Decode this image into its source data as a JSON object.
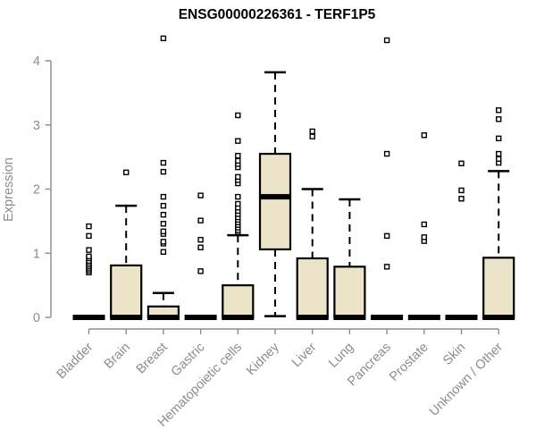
{
  "page": {
    "background": "#FFFFFF"
  },
  "chart_data": {
    "type": "boxplot",
    "title": "ENSG00000226361 - TERF1P5",
    "ylabel": "Expression",
    "xlabel": "",
    "ylim": [
      0,
      4.4
    ],
    "yticks": [
      0,
      1,
      2,
      3,
      4
    ],
    "grid": false,
    "legend": "none",
    "colors": {
      "box_fill": "#ECE4C8",
      "box_stroke": "#000000",
      "median": "#000000",
      "whisker": "#000000",
      "outlier_stroke": "#000000",
      "outlier_fill": "#FFFFFF",
      "axis": "#8C8C8C",
      "title": "#000000"
    },
    "categories": [
      "Bladder",
      "Brain",
      "Breast",
      "Gastric",
      "Hematopoietic cells",
      "Kidney",
      "Liver",
      "Lung",
      "Pancreas",
      "Prostate",
      "Skin",
      "Unknown / Other"
    ],
    "series": [
      {
        "name": "Bladder",
        "low": 0,
        "q1": 0,
        "median": 0,
        "q3": 0,
        "high": 0,
        "outliers": [
          0.7,
          0.73,
          0.76,
          0.79,
          0.82,
          0.85,
          0.88,
          0.92,
          0.95,
          1.05,
          1.27,
          1.42
        ]
      },
      {
        "name": "Brain",
        "low": 0,
        "q1": 0,
        "median": 0,
        "q3": 0.81,
        "high": 1.74,
        "outliers": [
          2.26
        ]
      },
      {
        "name": "Breast",
        "low": 0,
        "q1": 0,
        "median": 0,
        "q3": 0.17,
        "high": 0.38,
        "outliers": [
          1.02,
          1.15,
          1.18,
          1.3,
          1.34,
          1.46,
          1.6,
          1.74,
          1.88,
          2.27,
          2.41,
          4.35
        ]
      },
      {
        "name": "Gastric",
        "low": 0,
        "q1": 0,
        "median": 0,
        "q3": 0,
        "high": 0,
        "outliers": [
          0.72,
          1.09,
          1.21,
          1.51,
          1.9
        ]
      },
      {
        "name": "Hematopoietic cells",
        "low": 0,
        "q1": 0,
        "median": 0,
        "q3": 0.5,
        "high": 1.28,
        "outliers": [
          1.33,
          1.36,
          1.4,
          1.44,
          1.48,
          1.52,
          1.56,
          1.61,
          1.66,
          1.71,
          1.77,
          1.88,
          2.09,
          2.14,
          2.19,
          2.34,
          2.39,
          2.44,
          2.52,
          2.75,
          3.15
        ]
      },
      {
        "name": "Kidney",
        "low": 0.02,
        "q1": 1.06,
        "median": 1.88,
        "q3": 2.55,
        "high": 3.82,
        "outliers": []
      },
      {
        "name": "Liver",
        "low": 0,
        "q1": 0,
        "median": 0,
        "q3": 0.92,
        "high": 2.0,
        "outliers": [
          2.82,
          2.9
        ]
      },
      {
        "name": "Lung",
        "low": 0,
        "q1": 0,
        "median": 0,
        "q3": 0.79,
        "high": 1.84,
        "outliers": []
      },
      {
        "name": "Pancreas",
        "low": 0,
        "q1": 0,
        "median": 0,
        "q3": 0,
        "high": 0,
        "outliers": [
          0.79,
          1.27,
          2.55,
          4.32
        ]
      },
      {
        "name": "Prostate",
        "low": 0,
        "q1": 0,
        "median": 0,
        "q3": 0,
        "high": 0,
        "outliers": [
          1.19,
          1.25,
          1.45,
          2.84
        ]
      },
      {
        "name": "Skin",
        "low": 0,
        "q1": 0,
        "median": 0,
        "q3": 0,
        "high": 0,
        "outliers": [
          1.85,
          1.98,
          2.4
        ]
      },
      {
        "name": "Unknown / Other",
        "low": 0,
        "q1": 0,
        "median": 0,
        "q3": 0.93,
        "high": 2.28,
        "outliers": [
          2.41,
          2.47,
          2.55,
          2.79,
          3.09,
          3.23
        ]
      }
    ]
  }
}
